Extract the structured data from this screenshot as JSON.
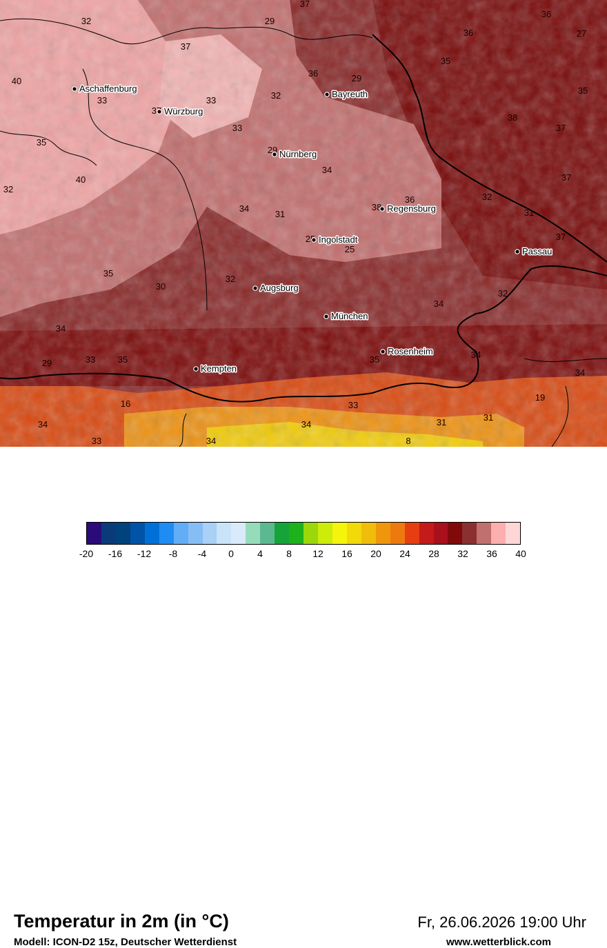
{
  "map": {
    "cities": [
      {
        "name": "Aschaffenburg"
      },
      {
        "name": "Würzburg"
      },
      {
        "name": "Bayreuth"
      },
      {
        "name": "Nürnberg"
      },
      {
        "name": "Regensburg"
      },
      {
        "name": "Ingolstadt"
      },
      {
        "name": "Passau"
      },
      {
        "name": "Augsburg"
      },
      {
        "name": "München"
      },
      {
        "name": "Rosenheim"
      },
      {
        "name": "Kempten"
      }
    ],
    "temperature_labels": [
      "37",
      "29",
      "32",
      "36",
      "27",
      "37",
      "36",
      "40",
      "33",
      "33",
      "36",
      "29",
      "35",
      "35",
      "37",
      "32",
      "33",
      "38",
      "37",
      "35",
      "29",
      "34",
      "37",
      "32",
      "40",
      "38",
      "36",
      "31",
      "34",
      "32",
      "31",
      "37",
      "25",
      "25",
      "35",
      "32",
      "30",
      "34",
      "32",
      "34",
      "34",
      "29",
      "33",
      "35",
      "35",
      "34",
      "19",
      "16",
      "34",
      "33",
      "34",
      "31",
      "31",
      "33",
      "8",
      "34"
    ]
  },
  "footer": {
    "title": "Temperatur in 2m (in °C)",
    "model": "Modell: ICON-D2 15z, Deutscher Wetterdienst",
    "datetime": "Fr, 26.06.2026 19:00 Uhr",
    "website": "www.wetterblick.com"
  },
  "legend": {
    "ticks": [
      "-20",
      "-16",
      "-12",
      "-8",
      "-4",
      "0",
      "4",
      "8",
      "12",
      "16",
      "20",
      "24",
      "28",
      "32",
      "36",
      "40"
    ],
    "colors": [
      "#2b0a7a",
      "#0b3a7a",
      "#00427c",
      "#0053a6",
      "#0070d9",
      "#1e8cf2",
      "#62adf5",
      "#87bdf5",
      "#a9d0f6",
      "#c9e3f9",
      "#dbeafb",
      "#96dcbb",
      "#5cb890",
      "#16a43a",
      "#1db11c",
      "#9bd70a",
      "#cdec0a",
      "#f4f50b",
      "#f2d90a",
      "#f0bd0a",
      "#ef960c",
      "#ec7a0f",
      "#e63d11",
      "#c51a1a",
      "#a8101b",
      "#800a0a",
      "#8b3031",
      "#c0706e",
      "#fdaeae",
      "#ffd6d6"
    ]
  }
}
